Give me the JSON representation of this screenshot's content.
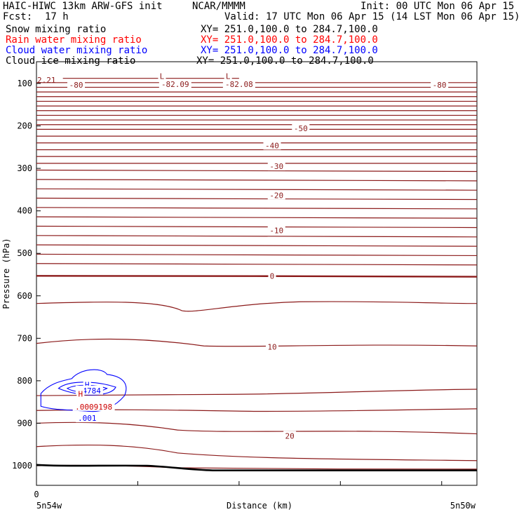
{
  "header": {
    "model_line": "HAIC-HIWC 13km ARW-GFS init",
    "org": "NCAR/MMMM",
    "init": "Init: 00 UTC Mon 06 Apr 15",
    "fcst_label": "Fcst:",
    "fcst_value": "17 h",
    "valid": "Valid: 17 UTC Mon 06 Apr 15 (14 LST Mon 06 Apr 15)"
  },
  "fields": [
    {
      "name": "Snow mixing ratio",
      "xy": "XY= 251.0,100.0 to 284.7,100.0",
      "color": "#000000"
    },
    {
      "name": "Rain water mixing ratio",
      "xy": "XY= 251.0,100.0 to 284.7,100.0",
      "color": "#ff0000"
    },
    {
      "name": "Cloud water mixing ratio",
      "xy": "XY= 251.0,100.0 to 284.7,100.0",
      "color": "#0000ff"
    },
    {
      "name": "Cloud ice mixing ratio",
      "xy": "XY= 251.0,100.0 to 284.7,100.0",
      "color": "#000000"
    }
  ],
  "chart_data": {
    "type": "contour-cross-section",
    "xlabel": "Distance (km)",
    "ylabel": "Pressure (hPa)",
    "x_tick_start": "0",
    "x_left_label": "5n54w",
    "x_right_label": "5n50w",
    "y_ticks": [
      100,
      200,
      300,
      400,
      500,
      600,
      700,
      800,
      900,
      1000
    ],
    "y_tick_labels": [
      "100",
      "200",
      "300",
      "400",
      "500",
      "600",
      "700",
      "800",
      "900",
      "1000"
    ],
    "ylim": [
      1025,
      60
    ],
    "temperature_labels": [
      {
        "text": "-80",
        "p": 103,
        "xf": 0.09
      },
      {
        "text": "-82.09",
        "p": 102,
        "xf": 0.315
      },
      {
        "text": "-82.08",
        "p": 102,
        "xf": 0.46
      },
      {
        "text": "-80",
        "p": 103,
        "xf": 0.915
      },
      {
        "text": "-50",
        "p": 206,
        "xf": 0.6
      },
      {
        "text": "-40",
        "p": 246,
        "xf": 0.535
      },
      {
        "text": "-30",
        "p": 295,
        "xf": 0.545
      },
      {
        "text": "-20",
        "p": 363,
        "xf": 0.545
      },
      {
        "text": "-10",
        "p": 446,
        "xf": 0.545
      },
      {
        "text": "0",
        "p": 553,
        "xf": 0.535
      },
      {
        "text": "10",
        "p": 720,
        "xf": 0.535
      },
      {
        "text": "20",
        "p": 930,
        "xf": 0.575
      },
      {
        "text": "L",
        "p": 83,
        "xf": 0.285
      },
      {
        "text": "L",
        "p": 83,
        "xf": 0.435
      }
    ],
    "edge_label": "2.21",
    "cloud_water_labels": [
      {
        "text": "H",
        "p": 809,
        "xf": 0.115
      },
      {
        "text": ".4784",
        "p": 823,
        "xf": 0.12
      },
      {
        "text": ".001",
        "p": 888,
        "xf": 0.115
      }
    ],
    "rain_labels": [
      {
        "text": "H",
        "p": 831,
        "xf": 0.1
      },
      {
        "text": ".0009198",
        "p": 861,
        "xf": 0.13
      }
    ],
    "colors": {
      "temperature": "#8b1a1a",
      "cloud_water": "#0000ff",
      "rain": "#cc0000",
      "ground": "#000000"
    }
  }
}
